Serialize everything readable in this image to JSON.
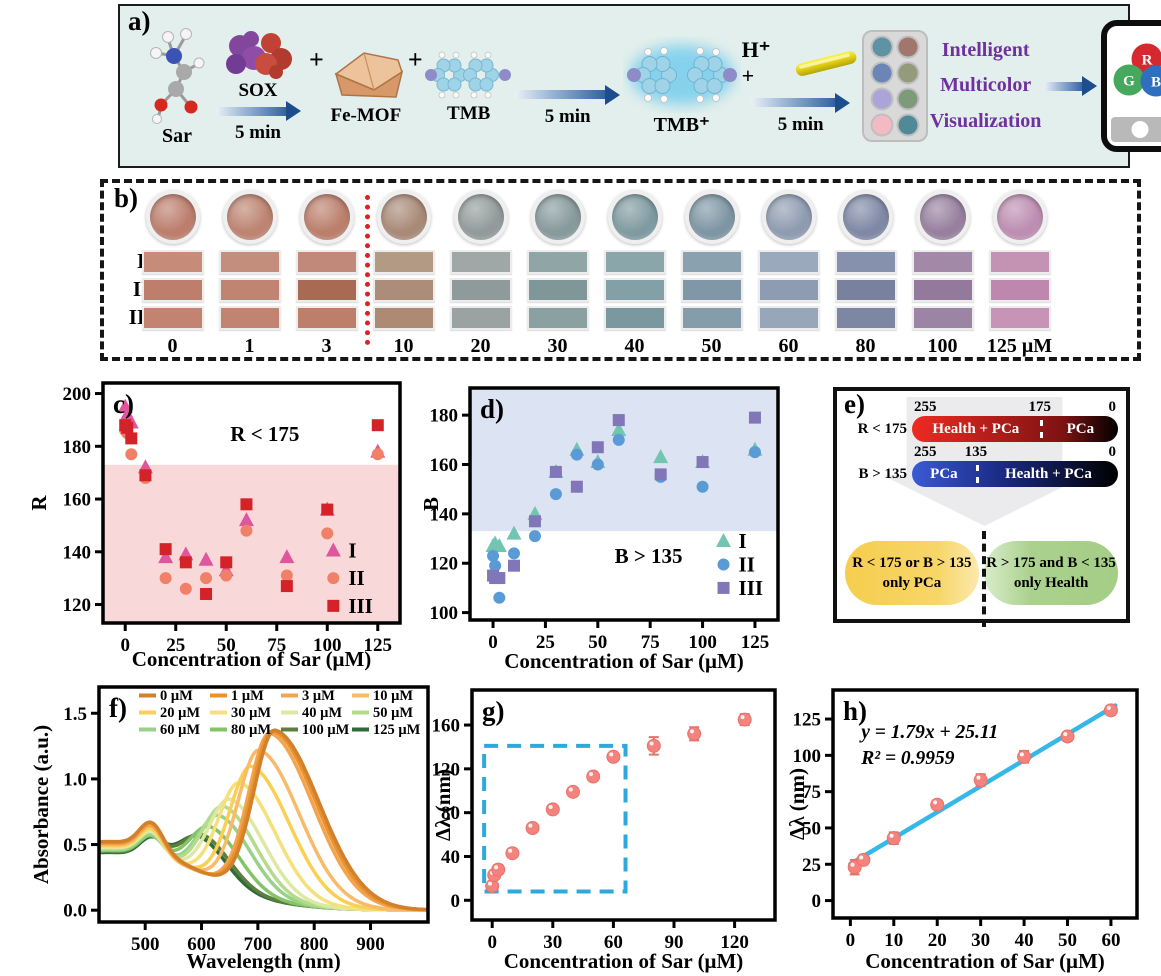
{
  "panel_a": {
    "label": "a)",
    "bg": "#e3efec",
    "sar": "Sar",
    "sox": "SOX",
    "femof": "Fe-MOF",
    "tmb": "TMB",
    "tmbplus": "TMB⁺",
    "plus": "+",
    "time1": "5 min",
    "time2": "5 min",
    "time3": "5 min",
    "hplus": "H⁺ +",
    "lines": [
      "Intelligent",
      "Multicolor",
      "Visualization"
    ],
    "text_color": "#7030a0",
    "rgb": [
      {
        "letter": "R",
        "color": "#d7282f"
      },
      {
        "letter": "G",
        "color": "#45a85c"
      },
      {
        "letter": "B",
        "color": "#2f6fc0"
      }
    ],
    "palette": [
      "#5f93a2",
      "#a2766d",
      "#6b85b5",
      "#949a7c",
      "#aaa4d9",
      "#7d9b78",
      "#f5b9c3",
      "#4f8a96"
    ]
  },
  "panel_b": {
    "label": "b)",
    "row_labels": [
      "I",
      "II",
      "III"
    ],
    "divider_color": "#e02020",
    "columns": [
      {
        "conc": "0",
        "well": "#bc7e6d",
        "rows": [
          "#c68c79",
          "#bd7f6c",
          "#c28470"
        ]
      },
      {
        "conc": "1",
        "well": "#bd8471",
        "rows": [
          "#c38e7c",
          "#bf8572",
          "#c08470"
        ]
      },
      {
        "conc": "3",
        "well": "#bb7f6c",
        "rows": [
          "#c0897a",
          "#a96a54",
          "#bd7e6a"
        ]
      },
      {
        "conc": "10",
        "well": "#a98a78",
        "rows": [
          "#b39a85",
          "#ab8d79",
          "#ad8a74"
        ]
      },
      {
        "conc": "20",
        "well": "#929b9b",
        "rows": [
          "#9fa8a7",
          "#8f9b9b",
          "#9aa3a2"
        ]
      },
      {
        "conc": "30",
        "well": "#879a9c",
        "rows": [
          "#8fa5a6",
          "#7f9798",
          "#8ba0a1"
        ]
      },
      {
        "conc": "40",
        "well": "#7f9ba1",
        "rows": [
          "#8aa6ab",
          "#82a0a6",
          "#7b989e"
        ]
      },
      {
        "conc": "50",
        "well": "#7e96a4",
        "rows": [
          "#8aa2b0",
          "#7f97a6",
          "#859daa"
        ]
      },
      {
        "conc": "60",
        "well": "#8f9cb0",
        "rows": [
          "#9aa9bc",
          "#8d9cb2",
          "#97a6b9"
        ]
      },
      {
        "conc": "80",
        "well": "#7f89a6",
        "rows": [
          "#8691ae",
          "#78829f",
          "#7d87a4"
        ]
      },
      {
        "conc": "100",
        "well": "#97809f",
        "rows": [
          "#a289a8",
          "#93799c",
          "#9c84a4"
        ]
      },
      {
        "conc": "125 μM",
        "well": "#bd8eb2",
        "rows": [
          "#c493b4",
          "#bd87ae",
          "#c794b8"
        ]
      }
    ]
  },
  "panel_e": {
    "label": "e)",
    "bar1": {
      "side_label": "R < 175",
      "left_num": "255",
      "mid_num": "175",
      "mid_pos": 62,
      "right_num": "0",
      "left_text": "Health + PCa",
      "right_text": "PCa",
      "grad": [
        "#ee2a22",
        "#7c1212",
        "#000000"
      ]
    },
    "bar2": {
      "side_label": "B > 135",
      "left_num": "255",
      "mid_num": "135",
      "mid_pos": 31,
      "right_num": "0",
      "left_text": "PCa",
      "right_text": "Health + PCa",
      "grad": [
        "#3a5ad6",
        "#1b2a85",
        "#000000"
      ]
    },
    "pill_left": {
      "line1": "R < 175 or B > 135",
      "line2": "only PCa",
      "color": "#f6cd4e"
    },
    "pill_right": {
      "line1": "R > 175 and B < 135",
      "line2": "only Health",
      "color": "#a4cd86"
    }
  },
  "chart_data": [
    {
      "id": "c",
      "type": "scatter",
      "panel_label": "c)",
      "xlabel": "Concentration of Sar (μM)",
      "ylabel": "R",
      "xlim": [
        -11,
        136
      ],
      "ylim": [
        113,
        204
      ],
      "xticks": [
        0,
        25,
        50,
        75,
        100,
        125
      ],
      "xtick_labels": [
        "0",
        "25",
        "50",
        "75",
        "100",
        "125"
      ],
      "yticks": [
        120,
        140,
        160,
        180,
        200
      ],
      "ytick_labels": [
        "120",
        "140",
        "160",
        "180",
        "200"
      ],
      "region": {
        "y": 173,
        "side": "below",
        "fill": "#f9d8d9",
        "label": "R < 175",
        "label_at": [
          52,
          182
        ]
      },
      "x": [
        0,
        1,
        3,
        10,
        20,
        30,
        40,
        50,
        60,
        80,
        100,
        125
      ],
      "series": [
        {
          "name": "I",
          "marker": "triangle",
          "color": "#e0569e",
          "values": [
            195,
            192,
            189,
            172,
            138,
            139,
            137,
            133,
            152,
            138,
            156,
            178
          ]
        },
        {
          "name": "II",
          "marker": "circle",
          "color": "#f08068",
          "values": [
            186,
            185,
            177,
            168,
            130,
            126,
            130,
            131,
            148,
            131,
            147,
            177
          ]
        },
        {
          "name": "III",
          "marker": "square",
          "color": "#d42328",
          "values": [
            188,
            187,
            183,
            169,
            141,
            136,
            124,
            136,
            158,
            127,
            156,
            188
          ]
        }
      ],
      "legend": {
        "x": 103,
        "ys": [
          140.5,
          130,
          119.5
        ]
      }
    },
    {
      "id": "d",
      "type": "scatter",
      "panel_label": "d)",
      "xlabel": "Concentration of Sar (μM)",
      "ylabel": "B",
      "xlim": [
        -11,
        136
      ],
      "ylim": [
        97,
        191
      ],
      "xticks": [
        0,
        25,
        50,
        75,
        100,
        125
      ],
      "xtick_labels": [
        "0",
        "25",
        "50",
        "75",
        "100",
        "125"
      ],
      "yticks": [
        100,
        120,
        140,
        160,
        180
      ],
      "ytick_labels": [
        "100",
        "120",
        "140",
        "160",
        "180"
      ],
      "region": {
        "y": 133,
        "side": "above",
        "fill": "#dce3f2",
        "label": "B > 135",
        "label_at": [
          58,
          120
        ]
      },
      "x": [
        0,
        1,
        3,
        10,
        20,
        30,
        40,
        50,
        60,
        80,
        100,
        125
      ],
      "series": [
        {
          "name": "I",
          "marker": "triangle",
          "color": "#72c5b0",
          "values": [
            127,
            128,
            127,
            132,
            140,
            157,
            166,
            161,
            174,
            163,
            161,
            166
          ]
        },
        {
          "name": "II",
          "marker": "circle",
          "color": "#5b9bd5",
          "values": [
            123,
            119,
            106,
            124,
            131,
            148,
            164,
            160,
            170,
            155,
            151,
            165
          ]
        },
        {
          "name": "III",
          "marker": "square",
          "color": "#8177b8",
          "values": [
            115,
            114,
            114,
            119,
            137,
            157,
            151,
            167,
            178,
            156,
            161,
            179
          ]
        }
      ],
      "legend": {
        "x": 110,
        "ys": [
          129,
          119.5,
          110
        ]
      }
    },
    {
      "id": "f",
      "type": "spectra",
      "panel_label": "f)",
      "xlabel": "Wavelength (nm)",
      "ylabel": "Absorbance (a.u.)",
      "xlim": [
        418,
        1002
      ],
      "ylim": [
        -0.09,
        1.7
      ],
      "xticks": [
        500,
        600,
        700,
        800,
        900
      ],
      "xtick_labels": [
        "500",
        "600",
        "700",
        "800",
        "900"
      ],
      "yticks": [
        0,
        0.5,
        1,
        1.5
      ],
      "ytick_labels": [
        "0.0",
        "0.5",
        "1.0",
        "1.5"
      ],
      "series": [
        {
          "label": "0 μM",
          "color": "#d2802b",
          "peak_nm": 731,
          "amp": 1.29,
          "bump": 0.21
        },
        {
          "label": "1 μM",
          "color": "#ea9130",
          "peak_nm": 727,
          "amp": 1.28,
          "bump": 0.21
        },
        {
          "label": "3 μM",
          "color": "#f3a44e",
          "peak_nm": 722,
          "amp": 1.26,
          "bump": 0.2
        },
        {
          "label": "10 μM",
          "color": "#f8ba6b",
          "peak_nm": 703,
          "amp": 1.11,
          "bump": 0.2
        },
        {
          "label": "20 μM",
          "color": "#f9d052",
          "peak_nm": 689,
          "amp": 0.97,
          "bump": 0.19
        },
        {
          "label": "30 μM",
          "color": "#f6e07c",
          "peak_nm": 669,
          "amp": 0.82,
          "bump": 0.19
        },
        {
          "label": "40 μM",
          "color": "#dde9a2",
          "peak_nm": 652,
          "amp": 0.67,
          "bump": 0.18
        },
        {
          "label": "50 μM",
          "color": "#b4db8b",
          "peak_nm": 641,
          "amp": 0.6,
          "bump": 0.18
        },
        {
          "label": "60 μM",
          "color": "#98d18a",
          "peak_nm": 633,
          "amp": 0.52,
          "bump": 0.17
        },
        {
          "label": "80 μM",
          "color": "#84c468",
          "peak_nm": 617,
          "amp": 0.41,
          "bump": 0.16
        },
        {
          "label": "100 μM",
          "color": "#5e7e3d",
          "peak_nm": 603,
          "amp": 0.33,
          "bump": 0.16
        },
        {
          "label": "125 μM",
          "color": "#2f6b38",
          "peak_nm": 597,
          "amp": 0.31,
          "bump": 0.15
        }
      ]
    },
    {
      "id": "g",
      "type": "scatter-error",
      "panel_label": "g)",
      "xlabel": "Concentration of Sar (μM)",
      "ylabel": "Δλ (nm)",
      "xlim": [
        -10,
        140
      ],
      "ylim": [
        -18,
        192
      ],
      "xticks": [
        0,
        30,
        60,
        90,
        120
      ],
      "xtick_labels": [
        "0",
        "30",
        "60",
        "90",
        "120"
      ],
      "yticks": [
        0,
        40,
        80,
        120,
        160
      ],
      "ytick_labels": [
        "0",
        "40",
        "80",
        "120",
        "160"
      ],
      "x": [
        0,
        1,
        3,
        10,
        20,
        30,
        40,
        50,
        60,
        80,
        100,
        125
      ],
      "y": [
        13,
        23,
        28,
        43,
        66,
        83,
        99,
        113,
        131,
        141,
        152,
        165
      ],
      "err": [
        4,
        3,
        4,
        3,
        3,
        3,
        3,
        3,
        3,
        8,
        6,
        5
      ],
      "marker_color": "#f4837d",
      "dash_box": {
        "x0": -4,
        "x1": 66,
        "y0": 8,
        "y1": 141,
        "color": "#2ea9dc"
      }
    },
    {
      "id": "h",
      "type": "scatter-fit",
      "panel_label": "h)",
      "xlabel": "Concentration of Sar (μM)",
      "ylabel": "Δλ (nm)",
      "xlim": [
        -4,
        66
      ],
      "ylim": [
        -12,
        145
      ],
      "xticks": [
        0,
        10,
        20,
        30,
        40,
        50,
        60
      ],
      "xtick_labels": [
        "0",
        "10",
        "20",
        "30",
        "40",
        "50",
        "60"
      ],
      "yticks": [
        0,
        25,
        50,
        75,
        100,
        125
      ],
      "ytick_labels": [
        "0",
        "25",
        "50",
        "75",
        "100",
        "125"
      ],
      "x": [
        1,
        3,
        10,
        20,
        30,
        40,
        50,
        60
      ],
      "y": [
        23,
        28,
        43,
        66,
        83,
        99,
        113,
        131
      ],
      "err": [
        5,
        3,
        4,
        3,
        4,
        4,
        3,
        3
      ],
      "marker_color": "#f4837d",
      "fit": {
        "slope": 1.79,
        "intercept": 25.11,
        "x0": 0,
        "x1": 61,
        "color": "#35b7e8",
        "eq_line1": "y = 1.79x  + 25.11",
        "eq_line2": "R² = 0.9959",
        "at": [
          2.5,
          112
        ]
      }
    }
  ]
}
